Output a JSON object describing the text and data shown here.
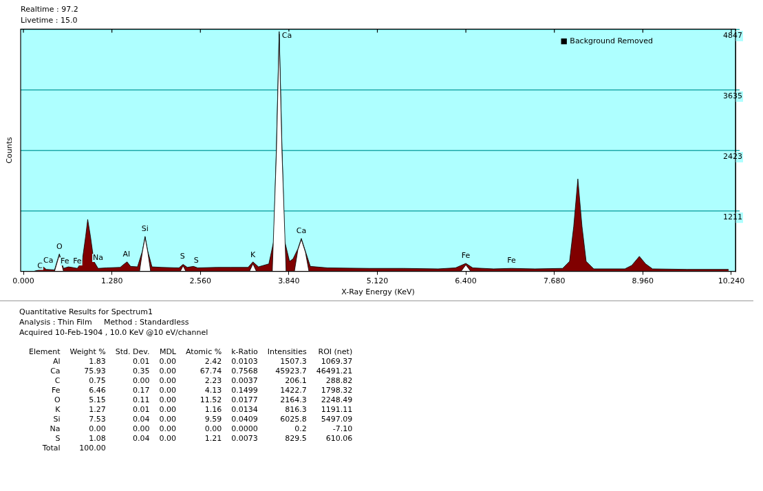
{
  "chart_data": {
    "type": "area",
    "title": "Realtime : 97.2",
    "subtitle": "Livetime : 15.0",
    "xlabel": "X-Ray Energy (KeV)",
    "ylabel": "Counts",
    "xlim": [
      -0.04,
      10.3
    ],
    "xticks": [
      {
        "value": 0,
        "label": "0.000"
      },
      {
        "value": 1.28,
        "label": "1.280"
      },
      {
        "value": 2.56,
        "label": "2.560"
      },
      {
        "value": 3.84,
        "label": "3.840"
      },
      {
        "value": 5.12,
        "label": "5.120"
      },
      {
        "value": 6.4,
        "label": "6.400"
      },
      {
        "value": 7.68,
        "label": "7.680"
      },
      {
        "value": 8.96,
        "label": "8.960"
      },
      {
        "value": 10.24,
        "label": "10.240"
      }
    ],
    "ylim": [
      0,
      4847
    ],
    "yticks": [
      1211,
      2423,
      3635,
      4847
    ],
    "grid": "y",
    "legend": false,
    "series": [
      {
        "color": "#800000",
        "x": [
          0,
          0.15,
          0.25,
          0.28,
          0.33,
          0.45,
          0.52,
          0.58,
          0.65,
          0.7,
          0.78,
          0.85,
          0.9,
          0.93,
          0.97,
          1.02,
          1.08,
          1.2,
          1.4,
          1.46,
          1.5,
          1.55,
          1.65,
          1.72,
          1.76,
          1.8,
          1.86,
          2.0,
          2.25,
          2.31,
          2.37,
          2.46,
          2.52,
          2.8,
          3.0,
          3.25,
          3.32,
          3.4,
          3.55,
          3.62,
          3.66,
          3.7,
          3.74,
          3.78,
          3.85,
          3.9,
          3.97,
          4.02,
          4.08,
          4.15,
          4.4,
          5.0,
          5.5,
          6.0,
          6.25,
          6.4,
          6.5,
          6.8,
          7.06,
          7.4,
          7.8,
          7.9,
          7.96,
          8.02,
          8.08,
          8.14,
          8.25,
          8.7,
          8.8,
          8.91,
          9.0,
          9.1,
          9.6,
          10.2
        ],
        "values": [
          0,
          0,
          40,
          100,
          40,
          30,
          350,
          60,
          90,
          80,
          60,
          200,
          700,
          1040,
          700,
          200,
          60,
          70,
          80,
          150,
          190,
          100,
          90,
          400,
          700,
          400,
          90,
          80,
          70,
          140,
          80,
          100,
          70,
          80,
          80,
          80,
          190,
          90,
          150,
          600,
          2500,
          4800,
          2500,
          600,
          200,
          250,
          450,
          660,
          400,
          100,
          70,
          60,
          60,
          50,
          70,
          160,
          70,
          50,
          60,
          50,
          60,
          200,
          900,
          1850,
          900,
          200,
          50,
          50,
          120,
          300,
          150,
          50,
          40,
          40
        ]
      },
      {
        "color": "#ffffff",
        "x": [
          0.45,
          0.52,
          0.58,
          0.59,
          1.68,
          1.72,
          1.76,
          1.8,
          1.84,
          1.85,
          2.27,
          2.31,
          2.35,
          2.36,
          3.27,
          3.32,
          3.37,
          3.38,
          3.6,
          3.66,
          3.7,
          3.74,
          3.8,
          3.81,
          3.92,
          3.97,
          4.02,
          4.08,
          4.13,
          4.14,
          6.33,
          6.4,
          6.47
        ],
        "values": [
          0,
          330,
          0,
          null,
          0,
          380,
          680,
          380,
          0,
          null,
          0,
          110,
          0,
          null,
          0,
          150,
          0,
          null,
          0,
          2400,
          4750,
          2400,
          0,
          null,
          0,
          430,
          640,
          380,
          0,
          null,
          0,
          130,
          0
        ]
      }
    ],
    "annotations": [
      {
        "text": "Ca",
        "x": 3.7,
        "y": 4800
      },
      {
        "text": "C",
        "x": 0.24,
        "y": 0
      },
      {
        "text": "Ca",
        "x": 0.36,
        "y": 110
      },
      {
        "text": "Fe",
        "x": 0.6,
        "y": 90
      },
      {
        "text": "Fe",
        "x": 0.78,
        "y": 90
      },
      {
        "text": "O",
        "x": 0.52,
        "y": 380
      },
      {
        "text": "Na",
        "x": 1.08,
        "y": 160
      },
      {
        "text": "Al",
        "x": 1.49,
        "y": 230
      },
      {
        "text": "Si",
        "x": 1.76,
        "y": 740
      },
      {
        "text": "S",
        "x": 2.3,
        "y": 190
      },
      {
        "text": "S",
        "x": 2.5,
        "y": 110
      },
      {
        "text": "K",
        "x": 3.32,
        "y": 220
      },
      {
        "text": "Ca",
        "x": 4.02,
        "y": 700
      },
      {
        "text": "Fe",
        "x": 6.4,
        "y": 200
      },
      {
        "text": "Fe",
        "x": 7.06,
        "y": 110
      },
      "■ Background Removed",
      "Quantitative Results for Spectrum1",
      "Analysis : Thin Film     Method : Standardless",
      "Acquired 10-Feb-1904 , 10.0 KeV @10 eV/channel",
      "Element\tWeight %\tStd. Dev.\tMDL\tAtomic %\tk-Ratio\tIntensities\tROI (net)",
      "Al\t1.83\t0.01\t0.00\t2.42\t0.0103\t1507.3\t1069.37",
      "Ca\t75.93\t0.35\t0.00\t67.74\t0.7568\t45923.7\t46491.21",
      "C\t0.75\t0.00\t0.00\t2.23\t0.0037\t206.1\t288.82",
      "Fe\t6.46\t0.17\t0.00\t4.13\t0.1499\t1422.7\t1798.32",
      "O\t5.15\t0.11\t0.00\t11.52\t0.0177\t2164.3\t2248.49",
      "K\t1.27\t0.01\t0.00\t1.16\t0.0134\t816.3\t1191.11",
      "Si\t7.53\t0.04\t0.00\t9.59\t0.0409\t6025.8\t5497.09",
      "Na\t0.00\t0.00\t0.00\t0.00\t0.0000\t0.2\t-7.10",
      "S\t1.08\t0.04\t0.00\t1.21\t0.0073\t829.5\t610.06",
      "Total\t100.00"
    ]
  }
}
